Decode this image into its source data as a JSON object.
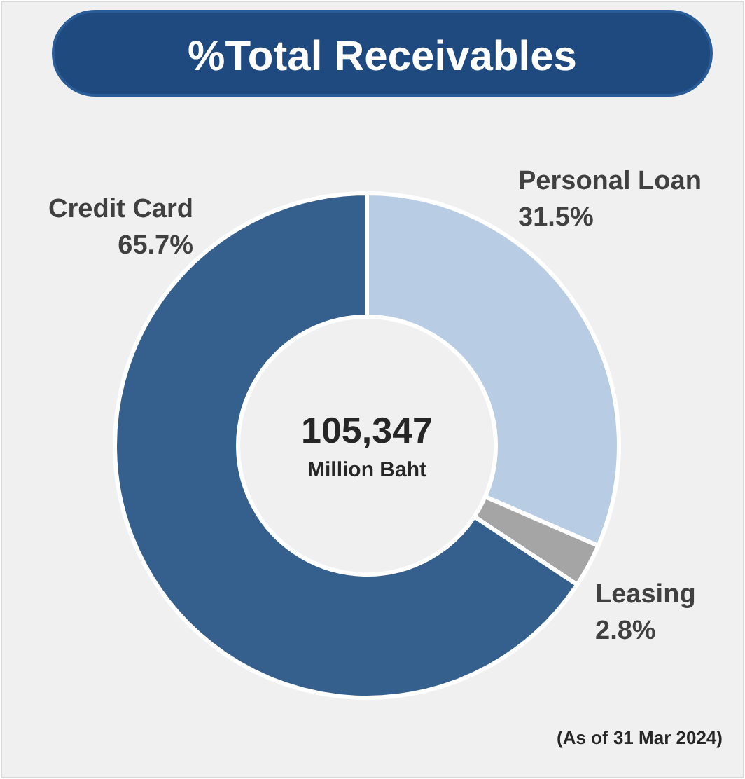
{
  "chart_data": {
    "type": "donut",
    "title": "%Total Receivables",
    "categories": [
      "Personal Loan",
      "Leasing",
      "Credit Card"
    ],
    "values": [
      31.5,
      2.8,
      65.7
    ],
    "colors": [
      "#b8cce4",
      "#a5a5a5",
      "#355f8d"
    ],
    "value_labels": [
      "31.5%",
      "2.8%",
      "65.7%"
    ],
    "annotations": [
      "105,347",
      "Million Baht",
      "(As of 31 Mar 2024)"
    ]
  }
}
